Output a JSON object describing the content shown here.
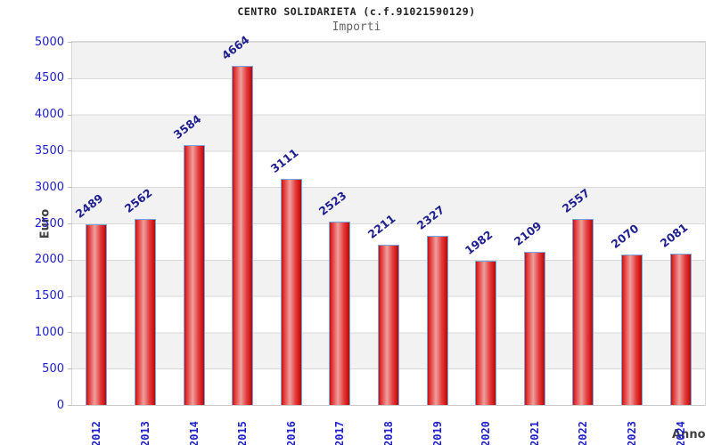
{
  "header": {
    "title": "CENTRO SOLIDARIETA (c.f.91021590129)",
    "subtitle": "Importi"
  },
  "chart_data": {
    "type": "bar",
    "title": "CENTRO SOLIDARIETA (c.f.91021590129)",
    "subtitle": "Importi",
    "xlabel": "Anno",
    "ylabel": "Euro",
    "categories": [
      "2012",
      "2013",
      "2014",
      "2015",
      "2016",
      "2017",
      "2018",
      "2019",
      "2020",
      "2021",
      "2022",
      "2023",
      "2024"
    ],
    "values": [
      2489,
      2562,
      3584,
      4664,
      3111,
      2523,
      2211,
      2327,
      1982,
      2109,
      2557,
      2070,
      2081
    ],
    "ylim": [
      0,
      5000
    ],
    "ytick_step": 500,
    "grid": "horizontal-bands",
    "legend": "none",
    "value_labels": "above-bars-rotated",
    "colors": {
      "bar_fill_main": "#e13030",
      "bar_fill_highlight": "#efa09d",
      "bar_edge": "#74a7e0",
      "tick_label": "#2121cb",
      "value_label": "#202090",
      "band_gray": "#f2f2f2",
      "band_white": "#ffffff",
      "gridline": "#dadada",
      "axis_title": "#404040",
      "title": "#222222",
      "subtitle": "#666666"
    }
  }
}
